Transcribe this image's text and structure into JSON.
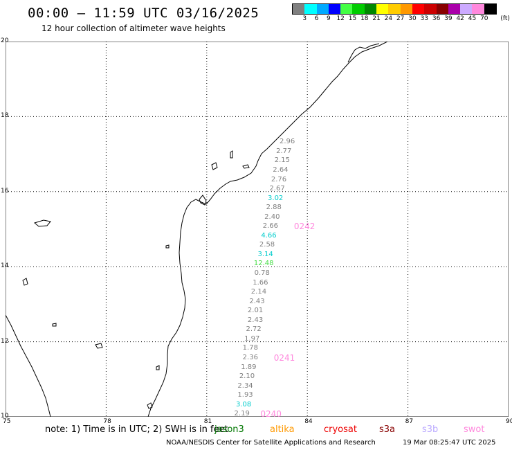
{
  "header": {
    "title": "00:00 – 11:59 UTC 03/16/2025",
    "subtitle": "12 hour collection of altimeter wave heights"
  },
  "legend": {
    "unit": "(ft)",
    "colors": [
      "#808080",
      "#00ffff",
      "#00aaff",
      "#0000ff",
      "#44ff44",
      "#00cc00",
      "#008800",
      "#ffff00",
      "#ffcc00",
      "#ff9900",
      "#ff0000",
      "#cc0000",
      "#880000",
      "#aa00aa",
      "#ccaaff",
      "#ff88dd",
      "#000000"
    ],
    "labels": [
      "3",
      "6",
      "9",
      "12",
      "15",
      "18",
      "21",
      "24",
      "27",
      "30",
      "33",
      "36",
      "39",
      "42",
      "45",
      "70"
    ]
  },
  "axes": {
    "lon_ticks": [
      "75",
      "78",
      "81",
      "84",
      "87",
      "90"
    ],
    "lat_ticks": [
      "20",
      "18",
      "16",
      "14",
      "12",
      "10"
    ]
  },
  "chart_data": {
    "type": "scatter",
    "title": "00:00 – 11:59 UTC 03/16/2025",
    "xlim": [
      75,
      90
    ],
    "ylim": [
      10,
      20
    ],
    "points": [
      {
        "lat": 17.3,
        "lon": 83.4,
        "swh": "2.96",
        "color": "#808080"
      },
      {
        "lat": 17.05,
        "lon": 83.3,
        "swh": "2.77",
        "color": "#808080"
      },
      {
        "lat": 16.8,
        "lon": 83.25,
        "swh": "2.15",
        "color": "#808080"
      },
      {
        "lat": 16.55,
        "lon": 83.2,
        "swh": "2.64",
        "color": "#808080"
      },
      {
        "lat": 16.3,
        "lon": 83.15,
        "swh": "2.76",
        "color": "#808080"
      },
      {
        "lat": 16.05,
        "lon": 83.1,
        "swh": "2.67",
        "color": "#808080"
      },
      {
        "lat": 15.8,
        "lon": 83.05,
        "swh": "3.02",
        "color": "#00cccc"
      },
      {
        "lat": 15.55,
        "lon": 83.0,
        "swh": "2.88",
        "color": "#808080"
      },
      {
        "lat": 15.3,
        "lon": 82.95,
        "swh": "2.40",
        "color": "#808080"
      },
      {
        "lat": 15.05,
        "lon": 82.9,
        "swh": "2.66",
        "color": "#808080"
      },
      {
        "lat": 14.8,
        "lon": 82.85,
        "swh": "4.66",
        "color": "#00cccc"
      },
      {
        "lat": 14.55,
        "lon": 82.8,
        "swh": "2.58",
        "color": "#808080"
      },
      {
        "lat": 14.3,
        "lon": 82.75,
        "swh": "3.14",
        "color": "#00cccc"
      },
      {
        "lat": 14.05,
        "lon": 82.7,
        "swh": "12.48",
        "color": "#44dd44"
      },
      {
        "lat": 13.8,
        "lon": 82.65,
        "swh": "0.78",
        "color": "#808080"
      },
      {
        "lat": 13.55,
        "lon": 82.6,
        "swh": "1.66",
        "color": "#808080"
      },
      {
        "lat": 13.3,
        "lon": 82.55,
        "swh": "2.14",
        "color": "#808080"
      },
      {
        "lat": 13.05,
        "lon": 82.5,
        "swh": "2.43",
        "color": "#808080"
      },
      {
        "lat": 12.8,
        "lon": 82.45,
        "swh": "2.01",
        "color": "#808080"
      },
      {
        "lat": 12.55,
        "lon": 82.45,
        "swh": "2.43",
        "color": "#808080"
      },
      {
        "lat": 12.3,
        "lon": 82.4,
        "swh": "2.72",
        "color": "#808080"
      },
      {
        "lat": 12.05,
        "lon": 82.35,
        "swh": "1.97",
        "color": "#808080"
      },
      {
        "lat": 11.8,
        "lon": 82.3,
        "swh": "1.78",
        "color": "#808080"
      },
      {
        "lat": 11.55,
        "lon": 82.3,
        "swh": "2.36",
        "color": "#808080"
      },
      {
        "lat": 11.3,
        "lon": 82.25,
        "swh": "1.89",
        "color": "#808080"
      },
      {
        "lat": 11.05,
        "lon": 82.2,
        "swh": "2.10",
        "color": "#808080"
      },
      {
        "lat": 10.8,
        "lon": 82.15,
        "swh": "2.34",
        "color": "#808080"
      },
      {
        "lat": 10.55,
        "lon": 82.15,
        "swh": "1.93",
        "color": "#808080"
      },
      {
        "lat": 10.3,
        "lon": 82.1,
        "swh": "3.08",
        "color": "#00cccc"
      },
      {
        "lat": 10.05,
        "lon": 82.05,
        "swh": "2.19",
        "color": "#808080"
      }
    ],
    "pass_labels": [
      {
        "lat": 15.05,
        "lon": 83.6,
        "text": "0242"
      },
      {
        "lat": 11.55,
        "lon": 83.0,
        "text": "0241"
      },
      {
        "lat": 10.05,
        "lon": 82.6,
        "text": "0240"
      }
    ]
  },
  "footer": {
    "note": "note: 1) Time is in UTC; 2) SWH is in feet",
    "satellites": [
      {
        "name": "jason3",
        "color": "#007700"
      },
      {
        "name": "altika",
        "color": "#ff9900"
      },
      {
        "name": "cryosat",
        "color": "#ee0000"
      },
      {
        "name": "s3a",
        "color": "#880000"
      },
      {
        "name": "s3b",
        "color": "#bbaaff"
      },
      {
        "name": "swot",
        "color": "#ff88dd"
      }
    ],
    "credit": "NOAA/NESDIS Center for Satellite Applications and Research",
    "timestamp": "19 Mar 08:25:47 UTC 2025"
  }
}
